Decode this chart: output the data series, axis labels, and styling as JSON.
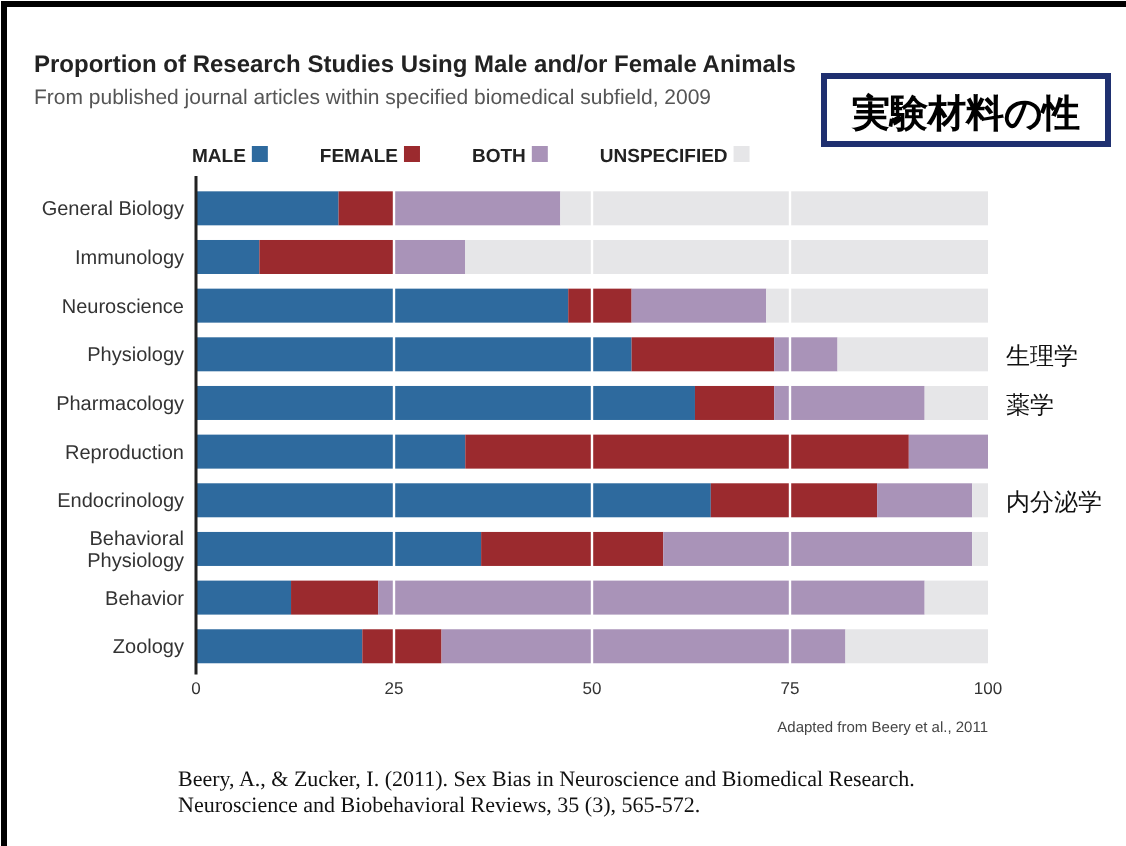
{
  "chart_data": {
    "type": "bar",
    "orientation": "horizontal",
    "stacked": true,
    "title": "Proportion of Research Studies Using Male and/or Female Animals",
    "subtitle": "From published journal articles within specified biomedical subfield, 2009",
    "categories": [
      "General Biology",
      "Immunology",
      "Neuroscience",
      "Physiology",
      "Pharmacology",
      "Reproduction",
      "Endocrinology",
      "Behavioral Physiology",
      "Behavior",
      "Zoology"
    ],
    "series": [
      {
        "name": "MALE",
        "color": "#2e6a9e",
        "values": [
          18,
          8,
          47,
          55,
          63,
          34,
          65,
          36,
          12,
          21
        ]
      },
      {
        "name": "FEMALE",
        "color": "#9b2a2e",
        "values": [
          7,
          17,
          8,
          18,
          10,
          56,
          21,
          23,
          11,
          10
        ]
      },
      {
        "name": "BOTH",
        "color": "#a993b8",
        "values": [
          21,
          9,
          17,
          8,
          19,
          10,
          12,
          39,
          69,
          51
        ]
      },
      {
        "name": "UNSPECIFIED",
        "color": "#e6e6e8",
        "values": [
          54,
          66,
          28,
          19,
          8,
          0,
          2,
          2,
          8,
          18
        ]
      }
    ],
    "xlim": [
      0,
      100
    ],
    "xticks": [
      0,
      25,
      50,
      75,
      100
    ],
    "grid": "x",
    "legend": "top",
    "annotations": [
      "実験材料の性",
      "生理学",
      "薬学",
      "内分泌学",
      "Adapted from Beery et al., 2011",
      "Beery, A., & Zucker, I. (2011). Sex Bias in Neuroscience and Biomedical Research. Neuroscience and Biobehavioral Reviews, 35 (3), 565-572."
    ]
  }
}
